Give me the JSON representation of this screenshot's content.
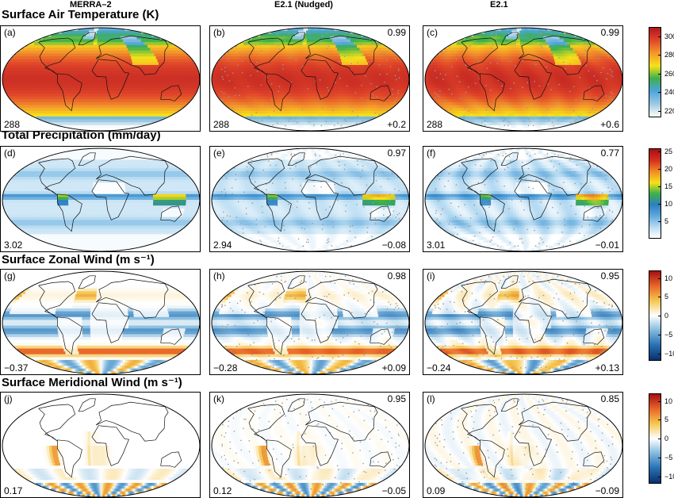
{
  "columns": [
    "MERRA–2",
    "E2.1 (Nudged)",
    "E2.1"
  ],
  "rows": [
    {
      "title": "Surface Air Temperature (K)",
      "variable": "temperature",
      "colorbar": {
        "ticks": [
          "300",
          "280",
          "260",
          "240",
          "220"
        ],
        "min": 213,
        "max": 310,
        "colors": [
          "#ffffff",
          "#9ecae1",
          "#4ba3dc",
          "#3db14a",
          "#f6e11a",
          "#f49a2a",
          "#e0452a",
          "#b3161d"
        ]
      },
      "panels": [
        {
          "label": "(a)",
          "mean": "288",
          "corr": "",
          "bias": ""
        },
        {
          "label": "(b)",
          "mean": "288",
          "corr": "0.99",
          "bias": "+0.2"
        },
        {
          "label": "(c)",
          "mean": "288",
          "corr": "0.99",
          "bias": "+0.6"
        }
      ]
    },
    {
      "title": "Total Precipitation (mm/day)",
      "variable": "precipitation",
      "colorbar": {
        "ticks": [
          "25",
          "20",
          "15",
          "10",
          "5"
        ],
        "min": 0,
        "max": 26,
        "colors": [
          "#ffffff",
          "#b9dcf2",
          "#5fa8dc",
          "#2d7fc1",
          "#3db14a",
          "#f6e11a",
          "#f08a24",
          "#d7301f",
          "#a50f15"
        ]
      },
      "panels": [
        {
          "label": "(d)",
          "mean": "3.02",
          "corr": "",
          "bias": ""
        },
        {
          "label": "(e)",
          "mean": "2.94",
          "corr": "0.97",
          "bias": "−0.08"
        },
        {
          "label": "(f)",
          "mean": "3.01",
          "corr": "0.77",
          "bias": "−0.01"
        }
      ]
    },
    {
      "title": "Surface Zonal Wind (m s⁻¹)",
      "variable": "zonal_wind",
      "colorbar": {
        "ticks": [
          "10",
          "5",
          "0",
          "−5",
          "−10"
        ],
        "min": -12,
        "max": 12,
        "colors": [
          "#08306b",
          "#2a71b4",
          "#7fb8dd",
          "#ffffff",
          "#f4c64e",
          "#e9682a",
          "#a50f15"
        ]
      },
      "panels": [
        {
          "label": "(g)",
          "mean": "−0.37",
          "corr": "",
          "bias": ""
        },
        {
          "label": "(h)",
          "mean": "−0.28",
          "corr": "0.98",
          "bias": "+0.09"
        },
        {
          "label": "(i)",
          "mean": "−0.24",
          "corr": "0.95",
          "bias": "+0.13"
        }
      ]
    },
    {
      "title": "Surface Meridional Wind (m s⁻¹)",
      "variable": "meridional_wind",
      "colorbar": {
        "ticks": [
          "10",
          "5",
          "0",
          "−5",
          "−10"
        ],
        "min": -12,
        "max": 12,
        "colors": [
          "#08306b",
          "#2a71b4",
          "#7fb8dd",
          "#ffffff",
          "#f4c64e",
          "#e9682a",
          "#a50f15"
        ]
      },
      "panels": [
        {
          "label": "(j)",
          "mean": "0.17",
          "corr": "",
          "bias": ""
        },
        {
          "label": "(k)",
          "mean": "0.12",
          "corr": "0.95",
          "bias": "−0.05"
        },
        {
          "label": "(l)",
          "mean": "0.09",
          "corr": "0.85",
          "bias": "−0.09"
        }
      ]
    }
  ]
}
